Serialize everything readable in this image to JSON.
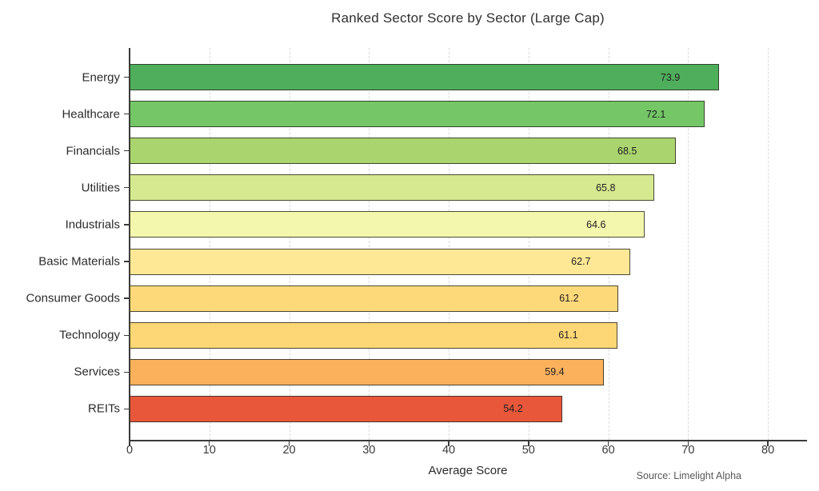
{
  "chart_data": {
    "type": "bar",
    "orientation": "horizontal",
    "title": "Ranked Sector Score by Sector (Large Cap)",
    "xlabel": "Average Score",
    "ylabel": "",
    "source_note": "Source: Limelight Alpha",
    "categories": [
      "Energy",
      "Healthcare",
      "Financials",
      "Utilities",
      "Industrials",
      "Basic Materials",
      "Consumer Goods",
      "Technology",
      "Services",
      "REITs"
    ],
    "values": [
      73.9,
      72.1,
      68.5,
      65.8,
      64.6,
      62.7,
      61.2,
      61.1,
      59.4,
      54.2
    ],
    "value_labels": [
      "73.9",
      "72.1",
      "68.5",
      "65.8",
      "64.6",
      "62.7",
      "61.2",
      "61.1",
      "59.4",
      "54.2"
    ],
    "bar_colors": [
      "#4fae5c",
      "#74c666",
      "#aad46e",
      "#d6e890",
      "#f3f7ad",
      "#fee895",
      "#fdd97a",
      "#fdd775",
      "#fbb15c",
      "#e9573b"
    ],
    "bar_edge_color": "#2d2d23",
    "xlim": [
      0,
      84.8
    ],
    "xticks": [
      0,
      10,
      20,
      30,
      40,
      50,
      60,
      70,
      80
    ],
    "grid": "vertical-dashed",
    "legend": "none"
  }
}
